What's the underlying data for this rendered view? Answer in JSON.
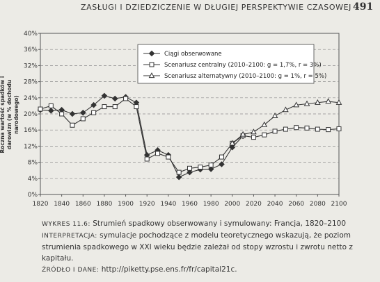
{
  "header": {
    "running_head": "ZASŁUGI I DZIEDZICZENIE W DŁUGIEJ PERSPEKTYWIE CZASOWEJ",
    "page_number": "491"
  },
  "caption": {
    "figure_label": "WYKRES 11.6:",
    "figure_title": "Strumień spadkowy obserwowany i symulowany: Francja, 1820–2100",
    "interpretation_label": "INTERPRETACJA:",
    "interpretation_text": "symulacje pochodzące z modelu teoretycznego wskazują, że poziom strumienia spadkowego w XXI wieku będzie zależał od stopy wzrostu i zwrotu netto z kapitału.",
    "source_label": "ŹRÓDŁO I DANE:",
    "source_text": "http://piketty.pse.ens.fr/fr/capital21c."
  },
  "chart_data": {
    "type": "line",
    "ylabel": "Roczna wartość spadków i darowizn (w % dochodu narodowego)",
    "xlabel": "",
    "xlim": [
      1820,
      2100
    ],
    "ylim": [
      0,
      40
    ],
    "x_ticks": [
      1820,
      1840,
      1860,
      1880,
      1900,
      1920,
      1940,
      1960,
      1980,
      2000,
      2020,
      2040,
      2060,
      2080,
      2100
    ],
    "y_ticks": [
      "0%",
      "4%",
      "8%",
      "12%",
      "16%",
      "20%",
      "24%",
      "28%",
      "32%",
      "36%",
      "40%"
    ],
    "grid": "horizontal dashed",
    "legend_position": "top-right",
    "series": [
      {
        "name": "Ciągi obserwowane",
        "marker": "diamond",
        "fill": "filled",
        "x": [
          1820,
          1830,
          1840,
          1850,
          1860,
          1870,
          1880,
          1890,
          1900,
          1910,
          1920,
          1930,
          1940,
          1950,
          1960,
          1970,
          1980,
          1990,
          2000,
          2010
        ],
        "y": [
          21.0,
          20.8,
          21.0,
          20.0,
          20.3,
          22.2,
          24.5,
          23.8,
          24.2,
          22.8,
          9.8,
          11.0,
          9.8,
          4.3,
          5.5,
          6.2,
          6.3,
          7.5,
          11.7,
          14.5
        ]
      },
      {
        "name": "Scenariusz centralny (2010–2100: g = 1,7%, r = 3%)",
        "marker": "square",
        "fill": "open",
        "x": [
          1820,
          1830,
          1840,
          1850,
          1860,
          1870,
          1880,
          1890,
          1900,
          1910,
          1920,
          1930,
          1940,
          1950,
          1960,
          1970,
          1980,
          1990,
          2000,
          2010,
          2020,
          2030,
          2040,
          2050,
          2060,
          2070,
          2080,
          2090,
          2100
        ],
        "y": [
          21.2,
          22.0,
          20.0,
          17.2,
          18.8,
          20.3,
          21.8,
          21.8,
          23.8,
          21.8,
          8.8,
          10.2,
          9.3,
          5.5,
          6.5,
          6.8,
          7.3,
          9.3,
          12.7,
          14.6,
          14.2,
          14.8,
          15.7,
          16.2,
          16.6,
          16.5,
          16.2,
          16.1,
          16.3
        ]
      },
      {
        "name": "Scenariusz alternatywny (2010–2100: g = 1%, r = 5%)",
        "marker": "triangle",
        "fill": "open",
        "x": [
          2000,
          2010,
          2020,
          2030,
          2040,
          2050,
          2060,
          2070,
          2080,
          2090,
          2100
        ],
        "y": [
          12.7,
          14.9,
          15.5,
          17.3,
          19.5,
          21.0,
          22.2,
          22.5,
          22.8,
          23.1,
          22.8
        ]
      }
    ]
  },
  "colors": {
    "background": "#ecebe6",
    "line": "#333333",
    "grid": "#8a8a8a"
  }
}
